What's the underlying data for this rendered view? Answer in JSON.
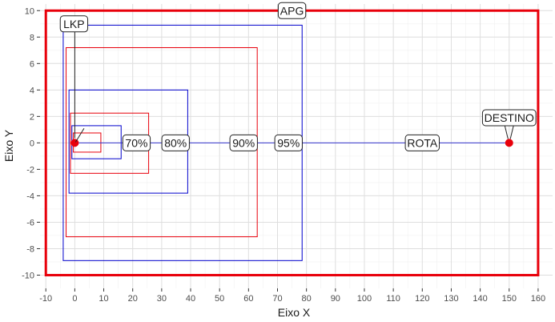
{
  "chart_data": {
    "type": "scatter",
    "title": "",
    "xlabel": "Eixo X",
    "ylabel": "Eixo Y",
    "xlim": [
      -12,
      165
    ],
    "ylim": [
      -11,
      10.5
    ],
    "x_ticks": [
      -10,
      0,
      10,
      20,
      30,
      40,
      50,
      60,
      70,
      80,
      90,
      100,
      110,
      120,
      130,
      140,
      150,
      160
    ],
    "y_ticks": [
      -10,
      -8,
      -6,
      -4,
      -2,
      0,
      2,
      4,
      6,
      8,
      10
    ],
    "x_tick_labels": [
      "-10",
      "0",
      "10",
      "20",
      "30",
      "40",
      "50",
      "60",
      "70",
      "80",
      "90",
      "100",
      "110",
      "120",
      "130",
      "140",
      "150",
      "160"
    ],
    "y_tick_labels": [
      "-10",
      "-8",
      "-6",
      "-4",
      "-2",
      "0",
      "2",
      "4",
      "6",
      "8",
      "10"
    ],
    "grid": true,
    "colors": {
      "red": "#e8000b",
      "blue": "#0000cc",
      "route": "#3333cc",
      "point": "#e8000b"
    },
    "apg": {
      "xmin": -10,
      "xmax": 160,
      "ymin": -10,
      "ymax": 10
    },
    "route": {
      "x": [
        0,
        150
      ],
      "y": [
        0,
        0
      ]
    },
    "points": [
      {
        "label": "LKP",
        "x": 0,
        "y": 0
      },
      {
        "label": "DESTINO",
        "x": 150,
        "y": 0
      }
    ],
    "rectangles": [
      {
        "color": "blue",
        "xmin": -1,
        "xmax": 16,
        "ymin": -1.2,
        "ymax": 1.3
      },
      {
        "color": "red",
        "xmin": -0.5,
        "xmax": 9,
        "ymin": -0.7,
        "ymax": 0.75
      },
      {
        "color": "red",
        "xmin": -1.5,
        "xmax": 25.5,
        "ymin": -2.3,
        "ymax": 2.25
      },
      {
        "color": "blue",
        "xmin": -2,
        "xmax": 39,
        "ymin": -3.8,
        "ymax": 4
      },
      {
        "color": "red",
        "xmin": -3,
        "xmax": 63,
        "ymin": -7.1,
        "ymax": 7.2
      },
      {
        "color": "blue",
        "xmin": -4,
        "xmax": 78.5,
        "ymin": -8.9,
        "ymax": 8.9
      }
    ],
    "annotations": [
      {
        "text": "APG",
        "x": 75,
        "y": 10
      },
      {
        "text": "LKP",
        "x": 0,
        "y": 9
      },
      {
        "text": "DESTINO",
        "x": 150,
        "y": 1.9
      },
      {
        "text": "70%",
        "x": 25.5,
        "y": 0
      },
      {
        "text": "80%",
        "x": 39,
        "y": 0
      },
      {
        "text": "90%",
        "x": 62.5,
        "y": 0
      },
      {
        "text": "95%",
        "x": 78,
        "y": 0
      },
      {
        "text": "ROTA",
        "x": 120,
        "y": 0
      }
    ]
  }
}
